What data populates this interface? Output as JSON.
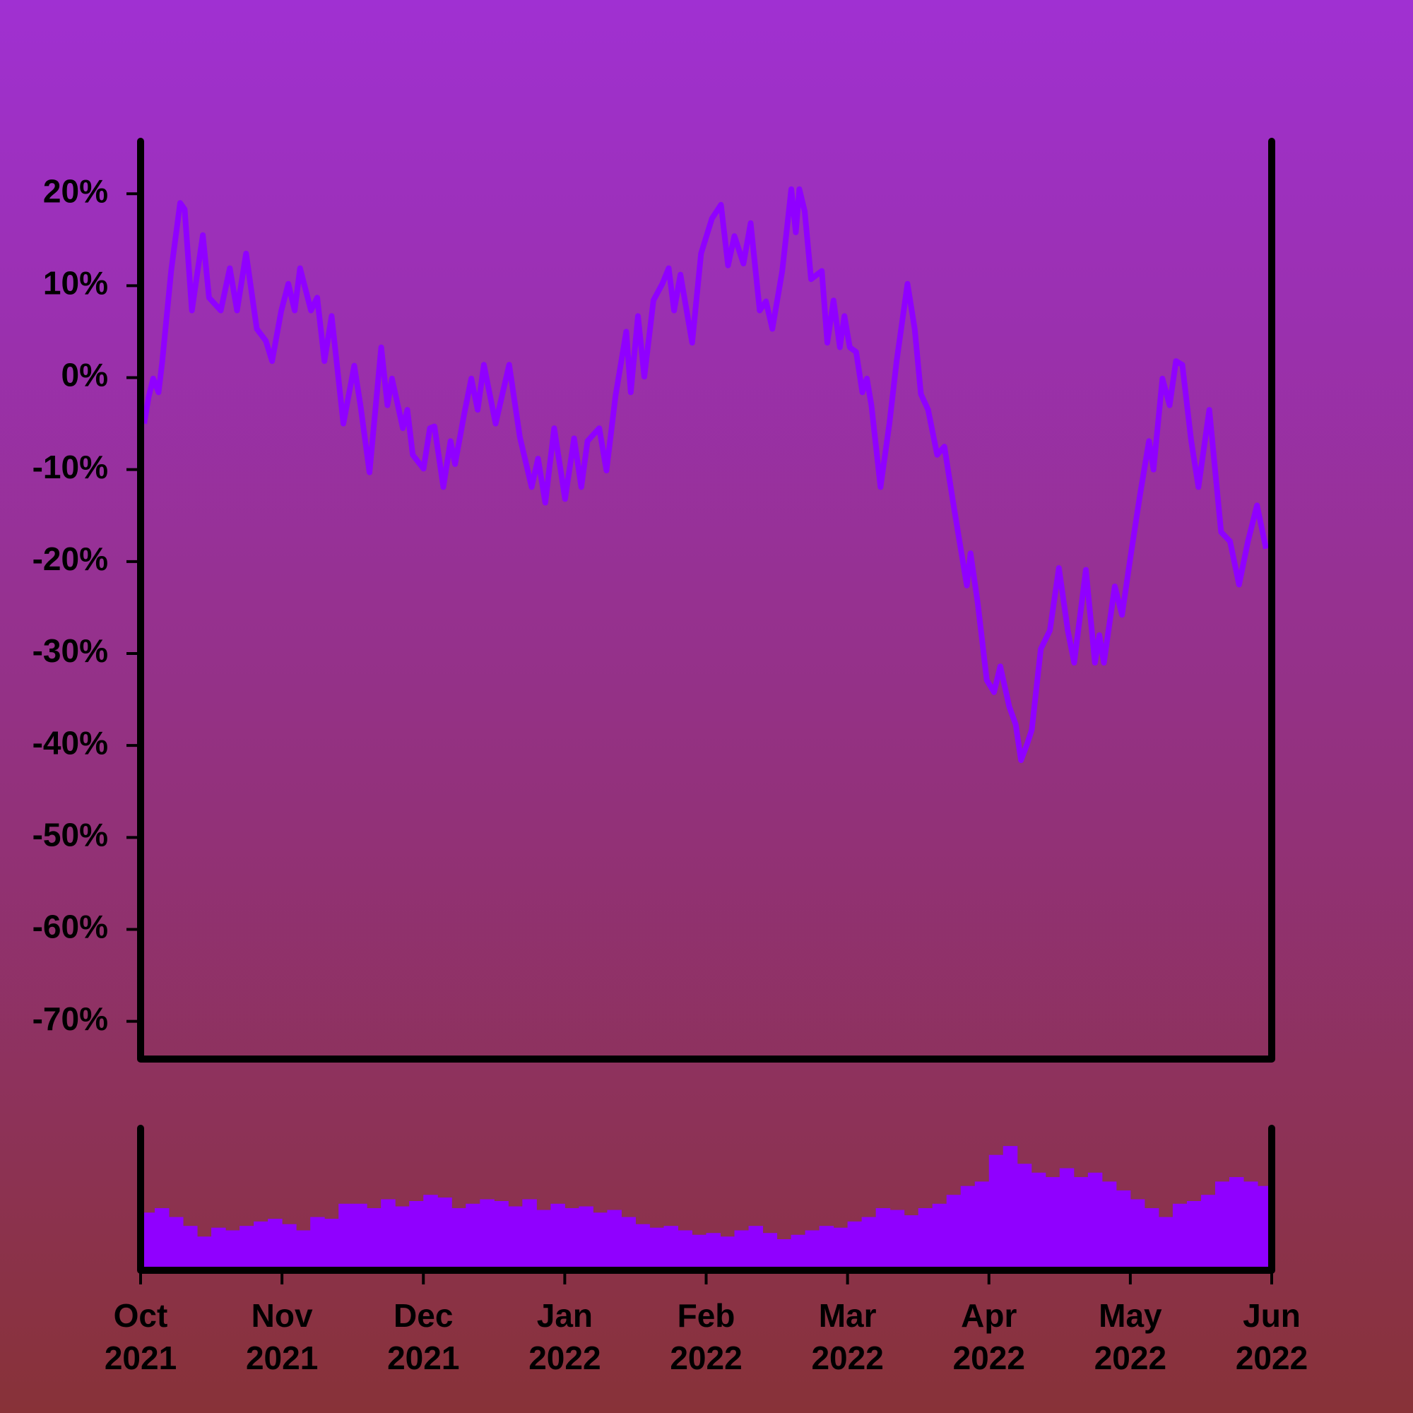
{
  "chart_data": [
    {
      "type": "line",
      "color": "#9000ff",
      "xlim": [
        0,
        8
      ],
      "ylim": [
        -74.1,
        25.7
      ],
      "yticks": [
        {
          "value": 20,
          "label": "20%"
        },
        {
          "value": 10,
          "label": "10%"
        },
        {
          "value": 0,
          "label": "0%"
        },
        {
          "value": -10,
          "label": "-10%"
        },
        {
          "value": -20,
          "label": "-20%"
        },
        {
          "value": -30,
          "label": "-30%"
        },
        {
          "value": -40,
          "label": "-40%"
        },
        {
          "value": -50,
          "label": "-50%"
        },
        {
          "value": -60,
          "label": "-60%"
        },
        {
          "value": -70,
          "label": "-70%"
        }
      ],
      "x": [
        0.025,
        0.057,
        0.089,
        0.127,
        0.153,
        0.217,
        0.28,
        0.312,
        0.363,
        0.44,
        0.484,
        0.567,
        0.631,
        0.682,
        0.746,
        0.822,
        0.886,
        0.93,
        0.994,
        1.045,
        1.09,
        1.128,
        1.205,
        1.249,
        1.3,
        1.351,
        1.434,
        1.511,
        1.555,
        1.619,
        1.702,
        1.746,
        1.778,
        1.855,
        1.887,
        1.925,
        2.001,
        2.046,
        2.078,
        2.141,
        2.192,
        2.224,
        2.288,
        2.339,
        2.384,
        2.428,
        2.511,
        2.556,
        2.607,
        2.683,
        2.766,
        2.811,
        2.862,
        2.925,
        3.002,
        3.066,
        3.117,
        3.161,
        3.244,
        3.295,
        3.359,
        3.435,
        3.467,
        3.518,
        3.563,
        3.627,
        3.69,
        3.735,
        3.773,
        3.818,
        3.901,
        3.964,
        4.041,
        4.105,
        4.155,
        4.2,
        4.264,
        4.315,
        4.379,
        4.423,
        4.468,
        4.538,
        4.602,
        4.634,
        4.659,
        4.697,
        4.742,
        4.818,
        4.857,
        4.901,
        4.946,
        4.978,
        5.016,
        5.061,
        5.105,
        5.137,
        5.169,
        5.233,
        5.296,
        5.347,
        5.424,
        5.475,
        5.519,
        5.57,
        5.634,
        5.685,
        5.743,
        5.806,
        5.844,
        5.87,
        5.921,
        5.985,
        6.036,
        6.08,
        6.144,
        6.189,
        6.227,
        6.271,
        6.303,
        6.367,
        6.431,
        6.495,
        6.558,
        6.603,
        6.686,
        6.75,
        6.781,
        6.813,
        6.89,
        6.941,
        7.004,
        7.068,
        7.132,
        7.164,
        7.227,
        7.278,
        7.323,
        7.368,
        7.431,
        7.482,
        7.559,
        7.642,
        7.705,
        7.769,
        7.832,
        7.896,
        7.96
      ],
      "values": [
        -5.0,
        -2.1,
        -0.1,
        -1.6,
        1.7,
        11.7,
        19.0,
        18.3,
        7.3,
        15.5,
        8.7,
        7.3,
        11.9,
        7.3,
        13.5,
        5.3,
        4.0,
        1.8,
        7.2,
        10.2,
        7.3,
        11.9,
        7.3,
        8.7,
        1.8,
        6.7,
        -5.0,
        1.3,
        -3.0,
        -10.3,
        3.3,
        -3.0,
        -0.1,
        -5.5,
        -3.5,
        -8.4,
        -9.9,
        -5.5,
        -5.3,
        -11.9,
        -6.9,
        -9.4,
        -4.0,
        -0.1,
        -3.5,
        1.4,
        -5.0,
        -2.0,
        1.4,
        -6.5,
        -11.9,
        -8.8,
        -13.6,
        -5.5,
        -13.2,
        -6.6,
        -11.9,
        -6.9,
        -5.5,
        -10.1,
        -2.0,
        5.0,
        -1.6,
        6.7,
        0.1,
        8.4,
        10.2,
        11.9,
        7.3,
        11.2,
        3.8,
        13.5,
        17.3,
        18.8,
        12.2,
        15.4,
        12.4,
        16.8,
        7.3,
        8.3,
        5.3,
        11.6,
        20.5,
        15.8,
        20.5,
        18.1,
        10.7,
        11.6,
        3.8,
        8.4,
        3.3,
        6.7,
        3.3,
        2.8,
        -1.6,
        -0.1,
        -3.0,
        -11.9,
        -5.0,
        1.8,
        10.2,
        5.3,
        -1.8,
        -3.5,
        -8.4,
        -7.5,
        -13.2,
        -19.1,
        -22.6,
        -19.1,
        -24.5,
        -32.9,
        -34.2,
        -31.4,
        -35.8,
        -37.7,
        -41.6,
        -39.8,
        -38.3,
        -29.5,
        -27.5,
        -20.7,
        -27.5,
        -31.0,
        -20.9,
        -31.0,
        -28.0,
        -31.0,
        -22.7,
        -25.8,
        -19.2,
        -12.8,
        -6.9,
        -10.0,
        -0.1,
        -3.0,
        1.8,
        1.4,
        -6.9,
        -11.9,
        -3.5,
        -16.8,
        -17.8,
        -22.5,
        -17.8,
        -13.9,
        -18.6
      ]
    },
    {
      "type": "bar",
      "color": "#9000ff",
      "xlim": [
        0,
        8
      ],
      "ylim": [
        0,
        160
      ],
      "xticks": [
        {
          "value": 0,
          "label": [
            "Oct",
            "2021"
          ]
        },
        {
          "value": 1,
          "label": [
            "Nov",
            "2021"
          ]
        },
        {
          "value": 2,
          "label": [
            "Dec",
            "2021"
          ]
        },
        {
          "value": 3,
          "label": [
            "Jan",
            "2022"
          ]
        },
        {
          "value": 4,
          "label": [
            "Feb",
            "2022"
          ]
        },
        {
          "value": 5,
          "label": [
            "Mar",
            "2022"
          ]
        },
        {
          "value": 6,
          "label": [
            "Apr",
            "2022"
          ]
        },
        {
          "value": 7,
          "label": [
            "May",
            "2022"
          ]
        },
        {
          "value": 8,
          "label": [
            "Jun",
            "2022"
          ]
        }
      ],
      "x": [
        0.05,
        0.15,
        0.25,
        0.35,
        0.45,
        0.55,
        0.65,
        0.75,
        0.85,
        0.95,
        1.05,
        1.15,
        1.25,
        1.35,
        1.45,
        1.55,
        1.65,
        1.75,
        1.85,
        1.95,
        2.05,
        2.15,
        2.25,
        2.35,
        2.45,
        2.55,
        2.65,
        2.75,
        2.85,
        2.95,
        3.05,
        3.15,
        3.25,
        3.35,
        3.45,
        3.55,
        3.65,
        3.75,
        3.85,
        3.95,
        4.05,
        4.15,
        4.25,
        4.35,
        4.45,
        4.55,
        4.65,
        4.75,
        4.85,
        4.95,
        5.05,
        5.15,
        5.25,
        5.35,
        5.45,
        5.55,
        5.65,
        5.75,
        5.85,
        5.95,
        6.05,
        6.15,
        6.25,
        6.35,
        6.45,
        6.55,
        6.65,
        6.75,
        6.85,
        6.95,
        7.05,
        7.15,
        7.25,
        7.35,
        7.45,
        7.55,
        7.65,
        7.75,
        7.85,
        7.95
      ],
      "values": [
        65,
        70,
        60,
        50,
        38,
        48,
        45,
        50,
        55,
        58,
        52,
        45,
        60,
        58,
        75,
        75,
        70,
        80,
        72,
        78,
        85,
        82,
        70,
        75,
        80,
        78,
        72,
        80,
        68,
        75,
        70,
        72,
        65,
        68,
        60,
        52,
        48,
        50,
        45,
        40,
        42,
        38,
        45,
        50,
        42,
        35,
        40,
        45,
        50,
        48,
        55,
        60,
        70,
        68,
        62,
        70,
        75,
        85,
        95,
        100,
        130,
        140,
        120,
        110,
        105,
        115,
        105,
        110,
        100,
        90,
        80,
        70,
        60,
        75,
        78,
        85,
        100,
        105,
        100,
        95
      ]
    }
  ]
}
